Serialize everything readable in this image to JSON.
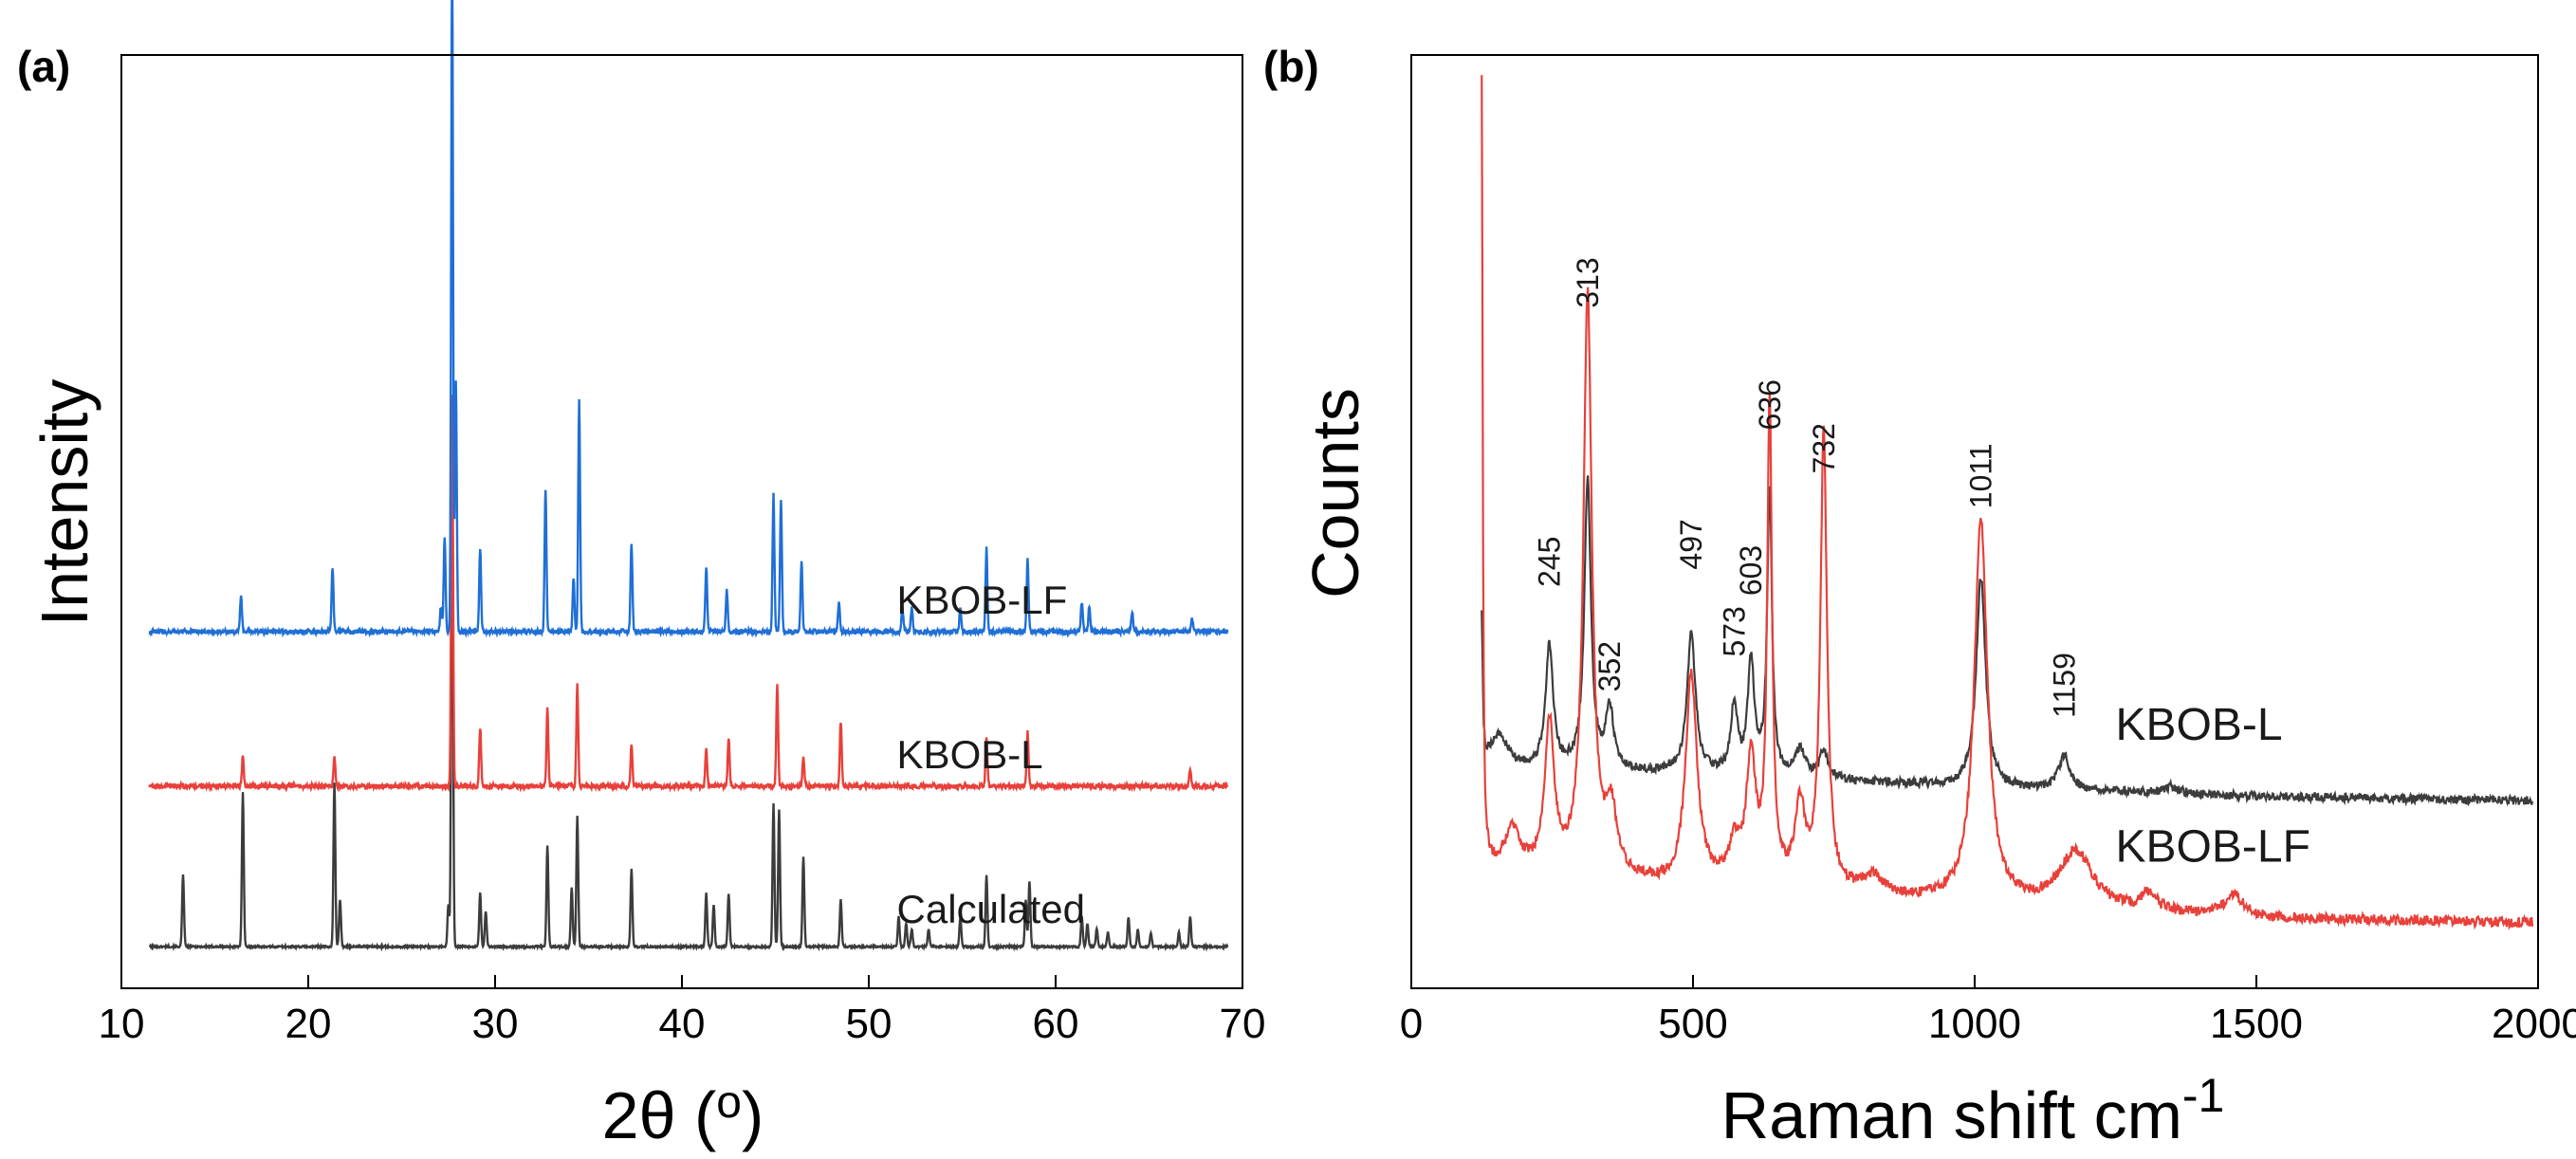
{
  "chart_data": [
    {
      "type": "line",
      "panel_label": "(a)",
      "xlabel_main": "2θ (",
      "xlabel_degree": "o",
      "xlabel_close": ")",
      "ylabel": "Intensity",
      "xlim": [
        10,
        70
      ],
      "ylim": [
        -0.35,
        7.5
      ],
      "xticks": [
        10,
        20,
        30,
        40,
        50,
        60,
        70
      ],
      "grid": false,
      "series": [
        {
          "name": "Calculated",
          "color": "#3c3c3c",
          "offset": 0,
          "noise": 0.008,
          "peaks": [
            [
              13.3,
              0.6
            ],
            [
              16.5,
              1.3
            ],
            [
              21.4,
              1.38
            ],
            [
              21.7,
              0.4
            ],
            [
              27.5,
              0.35
            ],
            [
              27.7,
              4.1
            ],
            [
              29.2,
              0.45
            ],
            [
              29.5,
              0.3
            ],
            [
              32.8,
              0.85
            ],
            [
              34.1,
              0.5
            ],
            [
              34.4,
              1.1
            ],
            [
              37.3,
              0.65
            ],
            [
              41.3,
              0.45
            ],
            [
              41.7,
              0.35
            ],
            [
              42.5,
              0.45
            ],
            [
              44.9,
              1.2
            ],
            [
              45.2,
              1.15
            ],
            [
              46.5,
              0.75
            ],
            [
              48.5,
              0.4
            ],
            [
              51.6,
              0.25
            ],
            [
              52.0,
              0.2
            ],
            [
              52.3,
              0.15
            ],
            [
              53.2,
              0.15
            ],
            [
              54.9,
              0.25
            ],
            [
              56.3,
              0.6
            ],
            [
              58.4,
              0.4
            ],
            [
              58.6,
              0.55
            ],
            [
              61.4,
              0.25
            ],
            [
              61.7,
              0.2
            ],
            [
              62.2,
              0.15
            ],
            [
              62.8,
              0.12
            ],
            [
              63.9,
              0.25
            ],
            [
              64.4,
              0.15
            ],
            [
              65.1,
              0.12
            ],
            [
              66.6,
              0.12
            ],
            [
              67.2,
              0.25
            ]
          ]
        },
        {
          "name": "KBOB-L",
          "color": "#e8403a",
          "offset": 1.35,
          "noise": 0.02,
          "peaks": [
            [
              16.5,
              0.25
            ],
            [
              21.4,
              0.25
            ],
            [
              27.7,
              3.3
            ],
            [
              29.2,
              0.5
            ],
            [
              32.8,
              0.65
            ],
            [
              34.4,
              0.85
            ],
            [
              37.3,
              0.35
            ],
            [
              41.3,
              0.3
            ],
            [
              42.5,
              0.4
            ],
            [
              45.1,
              0.85
            ],
            [
              46.5,
              0.25
            ],
            [
              48.5,
              0.55
            ],
            [
              56.3,
              0.4
            ],
            [
              58.5,
              0.45
            ],
            [
              67.2,
              0.15
            ]
          ]
        },
        {
          "name": "KBOB-LF",
          "color": "#1f6fd6",
          "offset": 2.65,
          "noise": 0.02,
          "peaks": [
            [
              16.4,
              0.3
            ],
            [
              21.3,
              0.55
            ],
            [
              27.1,
              0.2
            ],
            [
              27.3,
              0.8
            ],
            [
              27.7,
              5.7
            ],
            [
              27.9,
              2.1
            ],
            [
              29.2,
              0.7
            ],
            [
              32.7,
              1.2
            ],
            [
              34.2,
              0.45
            ],
            [
              34.5,
              1.95
            ],
            [
              37.3,
              0.75
            ],
            [
              41.3,
              0.55
            ],
            [
              42.4,
              0.35
            ],
            [
              44.9,
              1.15
            ],
            [
              45.3,
              1.1
            ],
            [
              46.4,
              0.6
            ],
            [
              48.4,
              0.25
            ],
            [
              51.8,
              0.2
            ],
            [
              52.3,
              0.2
            ],
            [
              54.9,
              0.2
            ],
            [
              56.3,
              0.7
            ],
            [
              58.5,
              0.6
            ],
            [
              61.4,
              0.25
            ],
            [
              61.8,
              0.2
            ],
            [
              64.1,
              0.18
            ],
            [
              67.3,
              0.12
            ]
          ]
        }
      ],
      "series_labels": [
        {
          "text": "KBOB-LF",
          "x": 51.5,
          "y": 2.8
        },
        {
          "text": "KBOB-L",
          "x": 51.5,
          "y": 1.5
        },
        {
          "text": "Calculated",
          "x": 51.5,
          "y": 0.2
        }
      ]
    },
    {
      "type": "line",
      "panel_label": "(b)",
      "xlabel_main": "Raman shift cm",
      "xlabel_sup": "-1",
      "ylabel": "Counts",
      "xlim": [
        0,
        2000
      ],
      "ylim": [
        -0.05,
        1.02
      ],
      "xticks": [
        0,
        500,
        1000,
        1500,
        2000
      ],
      "grid": false,
      "series": [
        {
          "name": "KBOB-L",
          "color": "#3c3c3c",
          "start": 125,
          "end": 1990,
          "baseline": [
            [
              125,
              0.2
            ],
            [
              300,
              0.2
            ],
            [
              700,
              0.19
            ],
            [
              1000,
              0.18
            ],
            [
              1500,
              0.17
            ],
            [
              2000,
              0.165
            ]
          ],
          "noise": 0.005,
          "peaks": [
            [
              125,
              0.17,
              2
            ],
            [
              155,
              0.04,
              20
            ],
            [
              245,
              0.14,
              8
            ],
            [
              313,
              0.33,
              7
            ],
            [
              352,
              0.07,
              8
            ],
            [
              497,
              0.16,
              9
            ],
            [
              573,
              0.08,
              7
            ],
            [
              603,
              0.13,
              7
            ],
            [
              636,
              0.33,
              5
            ],
            [
              690,
              0.03,
              10
            ],
            [
              732,
              0.03,
              10
            ],
            [
              1011,
              0.24,
              10
            ],
            [
              1159,
              0.04,
              12
            ],
            [
              1350,
              0.008,
              15
            ]
          ]
        },
        {
          "name": "KBOB-LF",
          "color": "#e8403a",
          "start": 125,
          "end": 1990,
          "baseline": [
            [
              125,
              0.09
            ],
            [
              200,
              0.08
            ],
            [
              300,
              0.08
            ],
            [
              450,
              0.065
            ],
            [
              600,
              0.07
            ],
            [
              900,
              0.05
            ],
            [
              1200,
              0.04
            ],
            [
              1500,
              0.03
            ],
            [
              2000,
              0.025
            ]
          ],
          "noise": 0.006,
          "peaks": [
            [
              125,
              0.9,
              2
            ],
            [
              180,
              0.05,
              15
            ],
            [
              245,
              0.17,
              10
            ],
            [
              313,
              0.66,
              9
            ],
            [
              355,
              0.07,
              12
            ],
            [
              497,
              0.24,
              12
            ],
            [
              573,
              0.04,
              10
            ],
            [
              603,
              0.14,
              10
            ],
            [
              636,
              0.55,
              5
            ],
            [
              690,
              0.09,
              10
            ],
            [
              732,
              0.52,
              7
            ],
            [
              820,
              0.02,
              20
            ],
            [
              1011,
              0.44,
              14
            ],
            [
              1180,
              0.065,
              35
            ],
            [
              1310,
              0.02,
              15
            ],
            [
              1460,
              0.025,
              20
            ]
          ]
        }
      ],
      "annotations": [
        {
          "text": "245",
          "x": 245,
          "y": 0.41
        },
        {
          "text": "313",
          "x": 313,
          "y": 0.73
        },
        {
          "text": "352",
          "x": 352,
          "y": 0.29
        },
        {
          "text": "497",
          "x": 497,
          "y": 0.43
        },
        {
          "text": "573",
          "x": 573,
          "y": 0.33
        },
        {
          "text": "603",
          "x": 603,
          "y": 0.4
        },
        {
          "text": "636",
          "x": 636,
          "y": 0.59
        },
        {
          "text": "732",
          "x": 732,
          "y": 0.54
        },
        {
          "text": "1011",
          "x": 1011,
          "y": 0.5
        },
        {
          "text": "1159",
          "x": 1159,
          "y": 0.26
        }
      ],
      "series_labels": [
        {
          "text": "KBOB-L",
          "x": 1250,
          "y": 0.235
        },
        {
          "text": "KBOB-LF",
          "x": 1250,
          "y": 0.095
        }
      ]
    }
  ]
}
